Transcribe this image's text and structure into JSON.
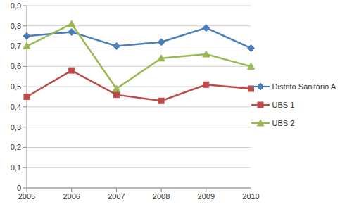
{
  "chart_data": {
    "type": "line",
    "categories": [
      "2005",
      "2006",
      "2007",
      "2008",
      "2009",
      "2010"
    ],
    "series": [
      {
        "name": "Distrito Sanitário A",
        "color": "#4a7ebb",
        "marker": "diamond",
        "values": [
          0.75,
          0.77,
          0.7,
          0.72,
          0.79,
          0.69
        ]
      },
      {
        "name": "UBS 1",
        "color": "#be4b48",
        "marker": "square",
        "values": [
          0.45,
          0.58,
          0.46,
          0.43,
          0.51,
          0.49
        ]
      },
      {
        "name": "UBS 2",
        "color": "#98b954",
        "marker": "triangle",
        "values": [
          0.7,
          0.81,
          0.49,
          0.64,
          0.66,
          0.6
        ]
      }
    ],
    "ylim": [
      0,
      0.9
    ],
    "yticks": [
      0,
      {
        "value": 0.1,
        "label": "0,1"
      },
      {
        "value": 0.2,
        "label": "0,2"
      },
      {
        "value": 0.3,
        "label": "0,3"
      },
      {
        "value": 0.4,
        "label": "0,4"
      },
      {
        "value": 0.5,
        "label": "0,5"
      },
      {
        "value": 0.6,
        "label": "0,6"
      },
      {
        "value": 0.7,
        "label": "0,7"
      },
      {
        "value": 0.8,
        "label": "0,8"
      },
      {
        "value": 0.9,
        "label": "0,9"
      }
    ],
    "grid": true,
    "legend": "right"
  }
}
